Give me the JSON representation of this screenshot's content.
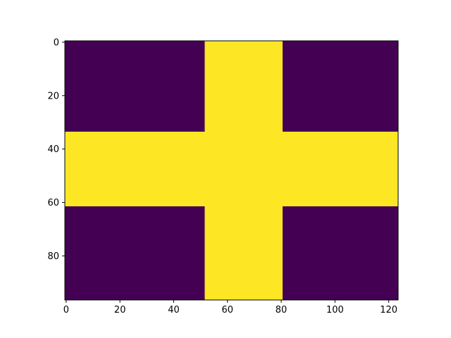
{
  "chart_data": {
    "type": "heatmap",
    "title": "",
    "xlabel": "",
    "ylabel": "",
    "grid": false,
    "legend": "none",
    "y_inverted": true,
    "xlim": [
      -0.5,
      123.5
    ],
    "ylim": [
      96.5,
      -0.5
    ],
    "x_ticks": [
      0,
      20,
      40,
      60,
      80,
      100,
      120
    ],
    "x_tick_labels": [
      "0",
      "20",
      "40",
      "60",
      "80",
      "100",
      "120"
    ],
    "y_ticks": [
      0,
      20,
      40,
      60,
      80
    ],
    "y_tick_labels": [
      "0",
      "20",
      "40",
      "60",
      "80"
    ],
    "value_colors": {
      "0": "#440154",
      "1": "#fde725"
    },
    "background_value": 0,
    "regions": [
      {
        "value": 1,
        "x": [
          0,
          123
        ],
        "y": [
          34,
          61
        ]
      },
      {
        "value": 1,
        "x": [
          52,
          80
        ],
        "y": [
          0,
          96
        ]
      },
      {
        "value": 1,
        "x": [
          53,
          80
        ],
        "y": [
          0,
          33
        ]
      },
      {
        "value": 1,
        "x": [
          53,
          80
        ],
        "y": [
          62,
          96
        ]
      }
    ],
    "edge_notches": [
      {
        "value": 1,
        "x": [
          52,
          52
        ],
        "y": [
          2,
          2
        ]
      },
      {
        "value": 1,
        "x": [
          52,
          52
        ],
        "y": [
          24,
          24
        ]
      },
      {
        "value": 1,
        "x": [
          52,
          52
        ],
        "y": [
          67,
          67
        ]
      },
      {
        "value": 1,
        "x": [
          52,
          52
        ],
        "y": [
          72,
          72
        ]
      },
      {
        "value": 1,
        "x": [
          52,
          52
        ],
        "y": [
          76,
          76
        ]
      },
      {
        "value": 1,
        "x": [
          52,
          52
        ],
        "y": [
          80,
          80
        ]
      },
      {
        "value": 1,
        "x": [
          52,
          52
        ],
        "y": [
          84,
          84
        ]
      },
      {
        "value": 1,
        "x": [
          52,
          52
        ],
        "y": [
          88,
          88
        ]
      },
      {
        "value": 1,
        "x": [
          52,
          52
        ],
        "y": [
          91,
          91
        ]
      }
    ]
  }
}
